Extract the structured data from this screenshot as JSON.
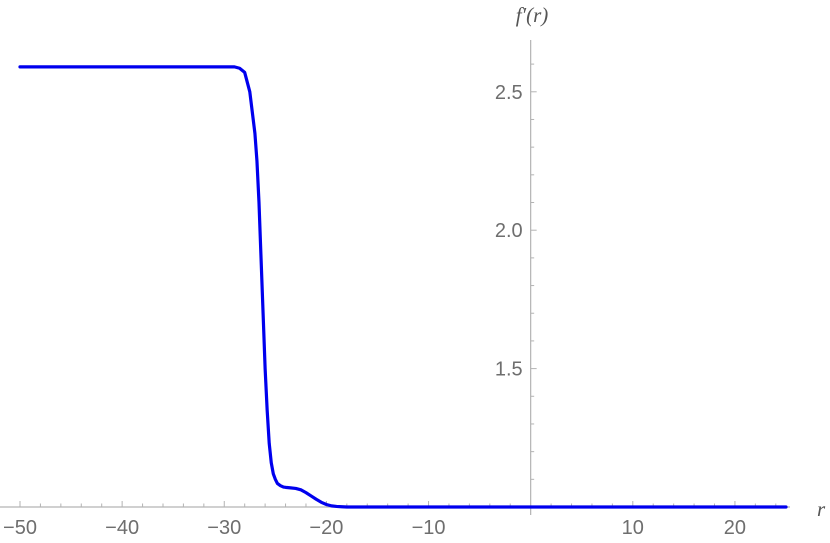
{
  "chart_data": {
    "type": "line",
    "xlabel": "r",
    "ylabel": "f′(r)",
    "xlim": [
      -50,
      25
    ],
    "ylim": [
      1.0,
      2.66
    ],
    "x_ticks": [
      -50,
      -40,
      -30,
      -20,
      -10,
      10,
      20
    ],
    "x_tick_labels": [
      "−50",
      "−40",
      "−30",
      "−20",
      "−10",
      "10",
      "20"
    ],
    "y_ticks": [
      1.5,
      2.0,
      2.5
    ],
    "y_tick_labels": [
      "1.5",
      "2.0",
      "2.5"
    ],
    "axis_origin": {
      "x": 0,
      "y": 1.0
    },
    "grid": false,
    "series": [
      {
        "color": "#0000ee",
        "x": [
          -50,
          -40,
          -30,
          -29,
          -28.5,
          -28,
          -27.5,
          -27,
          -26.8,
          -26.6,
          -26.4,
          -26.2,
          -26,
          -25.8,
          -25.6,
          -25.4,
          -25.2,
          -25,
          -24.8,
          -24.5,
          -24.2,
          -24,
          -23.5,
          -23,
          -22.5,
          -22,
          -21.5,
          -21,
          -20.5,
          -20,
          -19.5,
          -19,
          -18.5,
          -18,
          -17,
          -15,
          -10,
          0,
          10,
          20,
          25
        ],
        "y": [
          2.59,
          2.59,
          2.59,
          2.59,
          2.585,
          2.57,
          2.5,
          2.35,
          2.25,
          2.1,
          1.9,
          1.7,
          1.5,
          1.35,
          1.23,
          1.16,
          1.12,
          1.1,
          1.085,
          1.077,
          1.072,
          1.071,
          1.069,
          1.067,
          1.062,
          1.052,
          1.04,
          1.028,
          1.017,
          1.009,
          1.004,
          1.002,
          1.001,
          1.0,
          1.0,
          1.0,
          1.0,
          1.0,
          1.0,
          1.0,
          1.0
        ]
      }
    ]
  }
}
